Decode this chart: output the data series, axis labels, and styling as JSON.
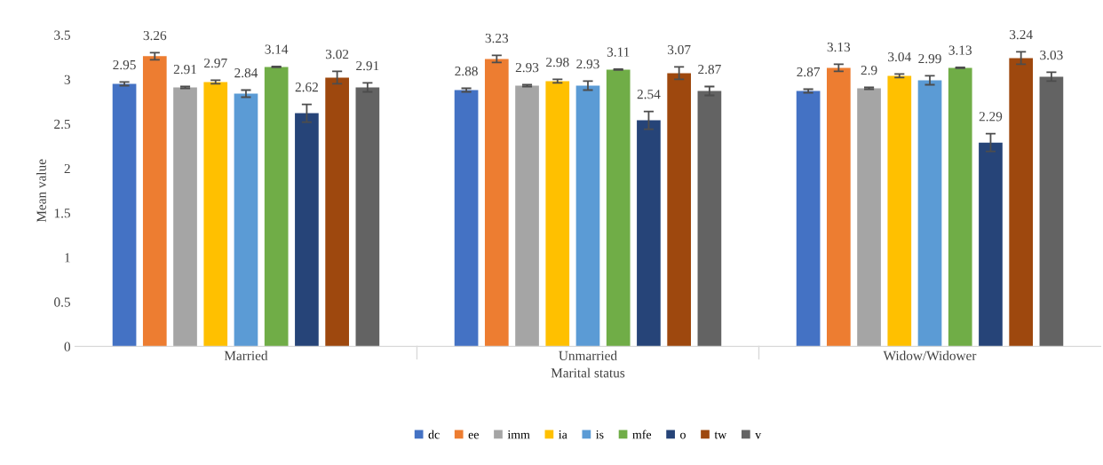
{
  "chart_data": {
    "type": "bar",
    "xlabel": "Marital status",
    "ylabel": "Mean value",
    "categories": [
      "Married",
      "Unmarried",
      "Widow/Widower"
    ],
    "series": [
      {
        "name": "dc",
        "color": "#4472c4",
        "values": [
          2.95,
          2.88,
          2.87
        ],
        "errors": [
          0.02,
          0.02,
          0.02
        ]
      },
      {
        "name": "ee",
        "color": "#ed7d31",
        "values": [
          3.26,
          3.23,
          3.13
        ],
        "errors": [
          0.04,
          0.04,
          0.04
        ]
      },
      {
        "name": "imm",
        "color": "#a5a5a5",
        "values": [
          2.91,
          2.93,
          2.9
        ],
        "errors": [
          0.01,
          0.01,
          0.01
        ]
      },
      {
        "name": "ia",
        "color": "#ffc000",
        "values": [
          2.97,
          2.98,
          3.04
        ],
        "errors": [
          0.02,
          0.02,
          0.02
        ]
      },
      {
        "name": "is",
        "color": "#5b9bd5",
        "values": [
          2.84,
          2.93,
          2.99
        ],
        "errors": [
          0.04,
          0.05,
          0.05
        ]
      },
      {
        "name": "mfe",
        "color": "#70ad47",
        "values": [
          3.14,
          3.11,
          3.13
        ],
        "errors": [
          0.005,
          0.005,
          0.005
        ]
      },
      {
        "name": "o",
        "color": "#264478",
        "values": [
          2.62,
          2.54,
          2.29
        ],
        "errors": [
          0.1,
          0.1,
          0.1
        ]
      },
      {
        "name": "tw",
        "color": "#9e480e",
        "values": [
          3.02,
          3.07,
          3.24
        ],
        "errors": [
          0.07,
          0.07,
          0.07
        ]
      },
      {
        "name": "v",
        "color": "#636363",
        "values": [
          2.91,
          2.87,
          3.03
        ],
        "errors": [
          0.05,
          0.05,
          0.05
        ]
      }
    ],
    "ylim": [
      0,
      3.5
    ],
    "yticks": [
      0,
      0.5,
      1,
      1.5,
      2,
      2.5,
      3,
      3.5
    ],
    "grid": false,
    "legend": "bottom",
    "data_labels": true
  }
}
